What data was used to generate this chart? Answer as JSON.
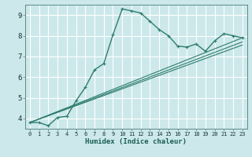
{
  "title": "",
  "xlabel": "Humidex (Indice chaleur)",
  "bg_color": "#cce8ea",
  "grid_color": "#ffffff",
  "line_color": "#2e7d6e",
  "xlim": [
    -0.5,
    23.5
  ],
  "ylim": [
    3.5,
    9.5
  ],
  "x_ticks": [
    0,
    1,
    2,
    3,
    4,
    5,
    6,
    7,
    8,
    9,
    10,
    11,
    12,
    13,
    14,
    15,
    16,
    17,
    18,
    19,
    20,
    21,
    22,
    23
  ],
  "y_ticks": [
    4,
    5,
    6,
    7,
    8,
    9
  ],
  "curve1_x": [
    0,
    1,
    2,
    3,
    4,
    5,
    6,
    7,
    8,
    9,
    10,
    11,
    12,
    13,
    14,
    15,
    16,
    17,
    18,
    19,
    20,
    21,
    22,
    23
  ],
  "curve1_y": [
    3.8,
    3.8,
    3.65,
    4.05,
    4.1,
    4.85,
    5.5,
    6.35,
    6.65,
    8.05,
    9.3,
    9.2,
    9.1,
    8.7,
    8.3,
    8.0,
    7.5,
    7.45,
    7.6,
    7.25,
    7.75,
    8.1,
    8.0,
    7.9
  ],
  "line1_x": [
    0,
    23
  ],
  "line1_y": [
    3.8,
    7.9
  ],
  "line2_x": [
    0,
    23
  ],
  "line2_y": [
    3.8,
    7.7
  ],
  "line3_x": [
    0,
    23
  ],
  "line3_y": [
    3.8,
    7.55
  ]
}
